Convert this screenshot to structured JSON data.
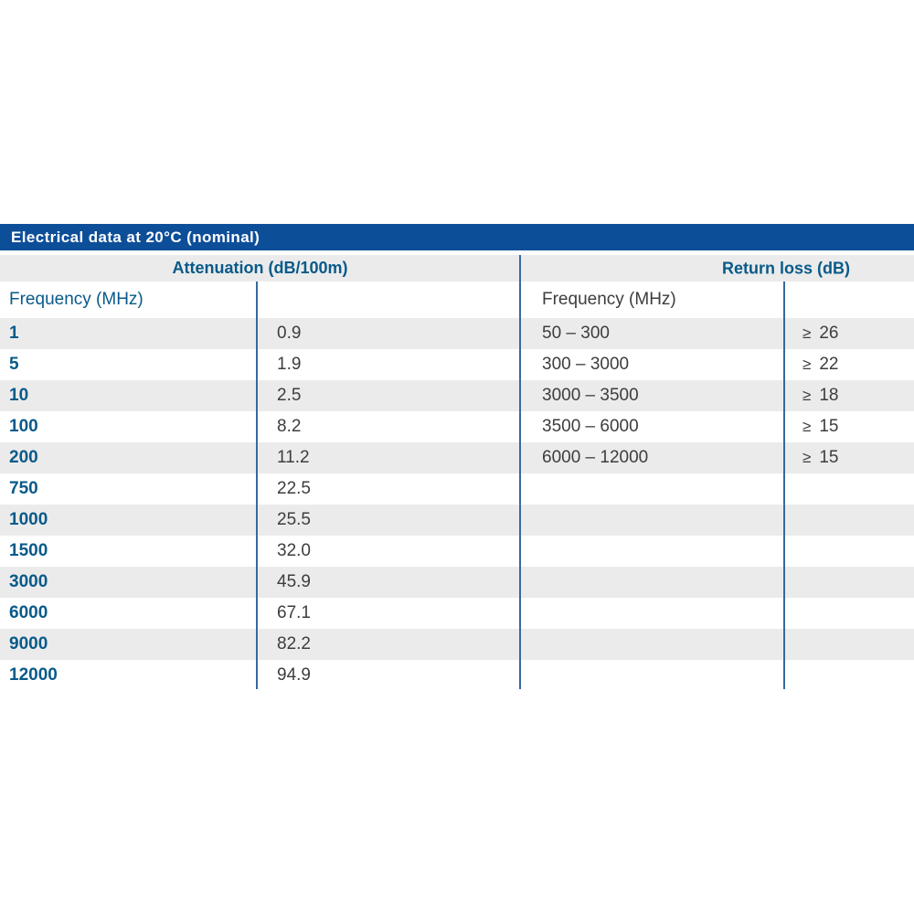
{
  "page": {
    "background": "#ffffff"
  },
  "colors": {
    "bar_bg": "#0d4e99",
    "blue_text": "#085a8a",
    "row_alt_bg": "#ebebeb",
    "dark_text": "#3d3d3f",
    "divider": "#36699f",
    "page_bg": "#ffffff"
  },
  "title_bar": {
    "label": "Electrical data at 20°C (nominal)"
  },
  "sections": {
    "attenuation": "Attenuation (dB/100m)",
    "return_loss": "Return loss (dB)"
  },
  "columns": {
    "left_header": "Frequency (MHz)",
    "right_header": "Frequency (MHz)"
  },
  "rows": [
    {
      "freq": "1",
      "atten": "0.9",
      "range": "50 – 300",
      "symbol": "≥",
      "loss": "26"
    },
    {
      "freq": "5",
      "atten": "1.9",
      "range": "300 – 3000",
      "symbol": "≥",
      "loss": "22"
    },
    {
      "freq": "10",
      "atten": "2.5",
      "range": "3000 – 3500",
      "symbol": "≥",
      "loss": "18"
    },
    {
      "freq": "100",
      "atten": "8.2",
      "range": "3500 – 6000",
      "symbol": "≥",
      "loss": "15"
    },
    {
      "freq": "200",
      "atten": "11.2",
      "range": "6000 – 12000",
      "symbol": "≥",
      "loss": "15"
    },
    {
      "freq": "750",
      "atten": "22.5",
      "range": "",
      "symbol": "",
      "loss": ""
    },
    {
      "freq": "1000",
      "atten": "25.5",
      "range": "",
      "symbol": "",
      "loss": ""
    },
    {
      "freq": "1500",
      "atten": "32.0",
      "range": "",
      "symbol": "",
      "loss": ""
    },
    {
      "freq": "3000",
      "atten": "45.9",
      "range": "",
      "symbol": "",
      "loss": ""
    },
    {
      "freq": "6000",
      "atten": "67.1",
      "range": "",
      "symbol": "",
      "loss": ""
    },
    {
      "freq": "9000",
      "atten": "82.2",
      "range": "",
      "symbol": "",
      "loss": ""
    },
    {
      "freq": "12000",
      "atten": "94.9",
      "range": "",
      "symbol": "",
      "loss": ""
    }
  ]
}
